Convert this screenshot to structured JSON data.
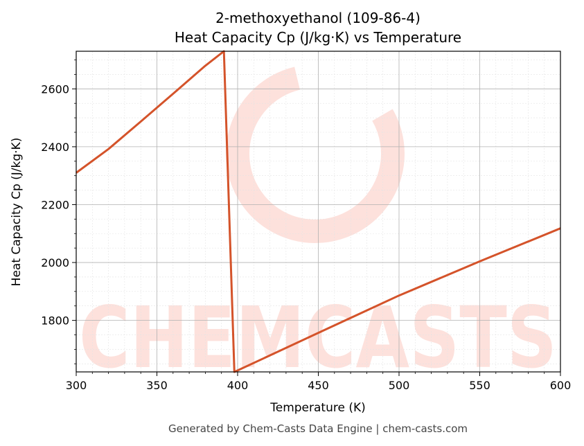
{
  "chart_data": {
    "type": "line",
    "title": "2-methoxyethanol (109-86-4)",
    "subtitle": "Heat Capacity Cp (J/kg·K) vs Temperature",
    "xlabel": "Temperature (K)",
    "ylabel": "Heat Capacity Cp (J/kg·K)",
    "xlim": [
      300,
      600
    ],
    "ylim": [
      1622,
      2730
    ],
    "x_ticks": [
      300,
      350,
      400,
      450,
      500,
      550,
      600
    ],
    "y_ticks": [
      1800,
      2000,
      2200,
      2400,
      2600
    ],
    "grid": true,
    "line_color": "#d4532a",
    "series": [
      {
        "x": [
          300,
          320,
          340,
          360,
          380,
          391.5,
          398,
          400,
          450,
          500,
          550,
          600
        ],
        "y": [
          2310,
          2392,
          2487,
          2583,
          2680,
          2730,
          1622,
          1627,
          1757,
          1886,
          2004,
          2118
        ]
      }
    ]
  },
  "watermark": {
    "text": "CHEMCASTS",
    "color": "#fde1dc"
  },
  "footer": "Generated by Chem-Casts Data Engine | chem-casts.com"
}
